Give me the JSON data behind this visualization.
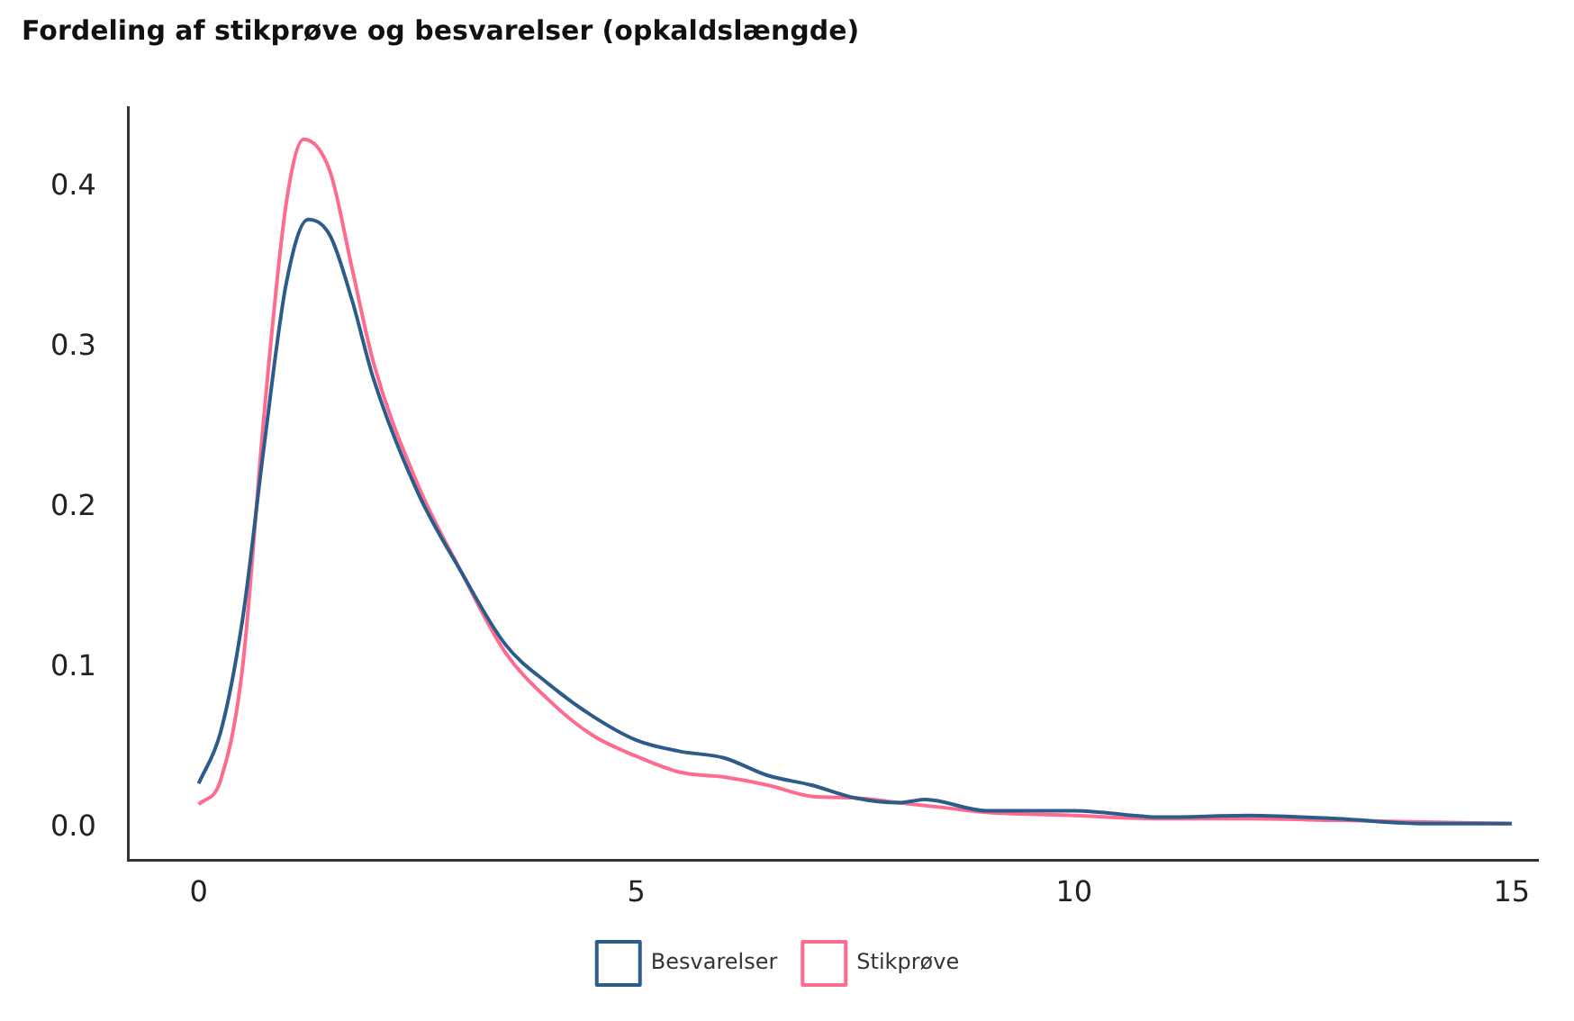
{
  "chart_data": {
    "type": "line",
    "title": "Fordeling af stikprøve og besvarelser (opkaldslængde)",
    "xlim": [
      -0.8,
      15.3
    ],
    "xticks": [
      0,
      5,
      10,
      15
    ],
    "ylim": [
      -0.02,
      0.45
    ],
    "yticks": [
      {
        "value": 0,
        "label": "0.0"
      },
      {
        "value": 0.1,
        "label": "0.1"
      },
      {
        "value": 0.2,
        "label": "0.2"
      },
      {
        "value": 0.3,
        "label": "0.3"
      },
      {
        "value": 0.4,
        "label": "0.4"
      }
    ],
    "grid": false,
    "legend": "bottom",
    "marker": "none",
    "line_style": "solid",
    "series": [
      {
        "name": "Besvarelser",
        "color": "#2b5c8a",
        "x": [
          0,
          0.25,
          0.5,
          0.75,
          1,
          1.25,
          1.5,
          1.75,
          2,
          2.5,
          3,
          3.5,
          4,
          4.5,
          5,
          5.5,
          6,
          6.5,
          7,
          7.5,
          8,
          8.3,
          9,
          10,
          11,
          12,
          13,
          14,
          15
        ],
        "values": [
          0.028,
          0.06,
          0.13,
          0.24,
          0.34,
          0.38,
          0.37,
          0.33,
          0.28,
          0.21,
          0.16,
          0.115,
          0.09,
          0.07,
          0.055,
          0.048,
          0.044,
          0.033,
          0.027,
          0.019,
          0.016,
          0.018,
          0.011,
          0.011,
          0.007,
          0.008,
          0.006,
          0.003,
          0.003
        ]
      },
      {
        "name": "Stikprøve",
        "color": "#ff6b8f",
        "x": [
          0,
          0.25,
          0.5,
          0.75,
          1,
          1.2,
          1.5,
          1.75,
          2,
          2.5,
          3,
          3.5,
          4,
          4.5,
          5,
          5.5,
          6,
          6.5,
          7,
          7.5,
          8,
          8.5,
          9,
          10,
          11,
          12,
          13,
          14,
          15
        ],
        "values": [
          0.015,
          0.03,
          0.1,
          0.26,
          0.39,
          0.43,
          0.41,
          0.35,
          0.29,
          0.215,
          0.16,
          0.11,
          0.08,
          0.058,
          0.045,
          0.035,
          0.032,
          0.027,
          0.02,
          0.019,
          0.016,
          0.013,
          0.01,
          0.008,
          0.006,
          0.006,
          0.005,
          0.004,
          0.003
        ]
      }
    ]
  }
}
